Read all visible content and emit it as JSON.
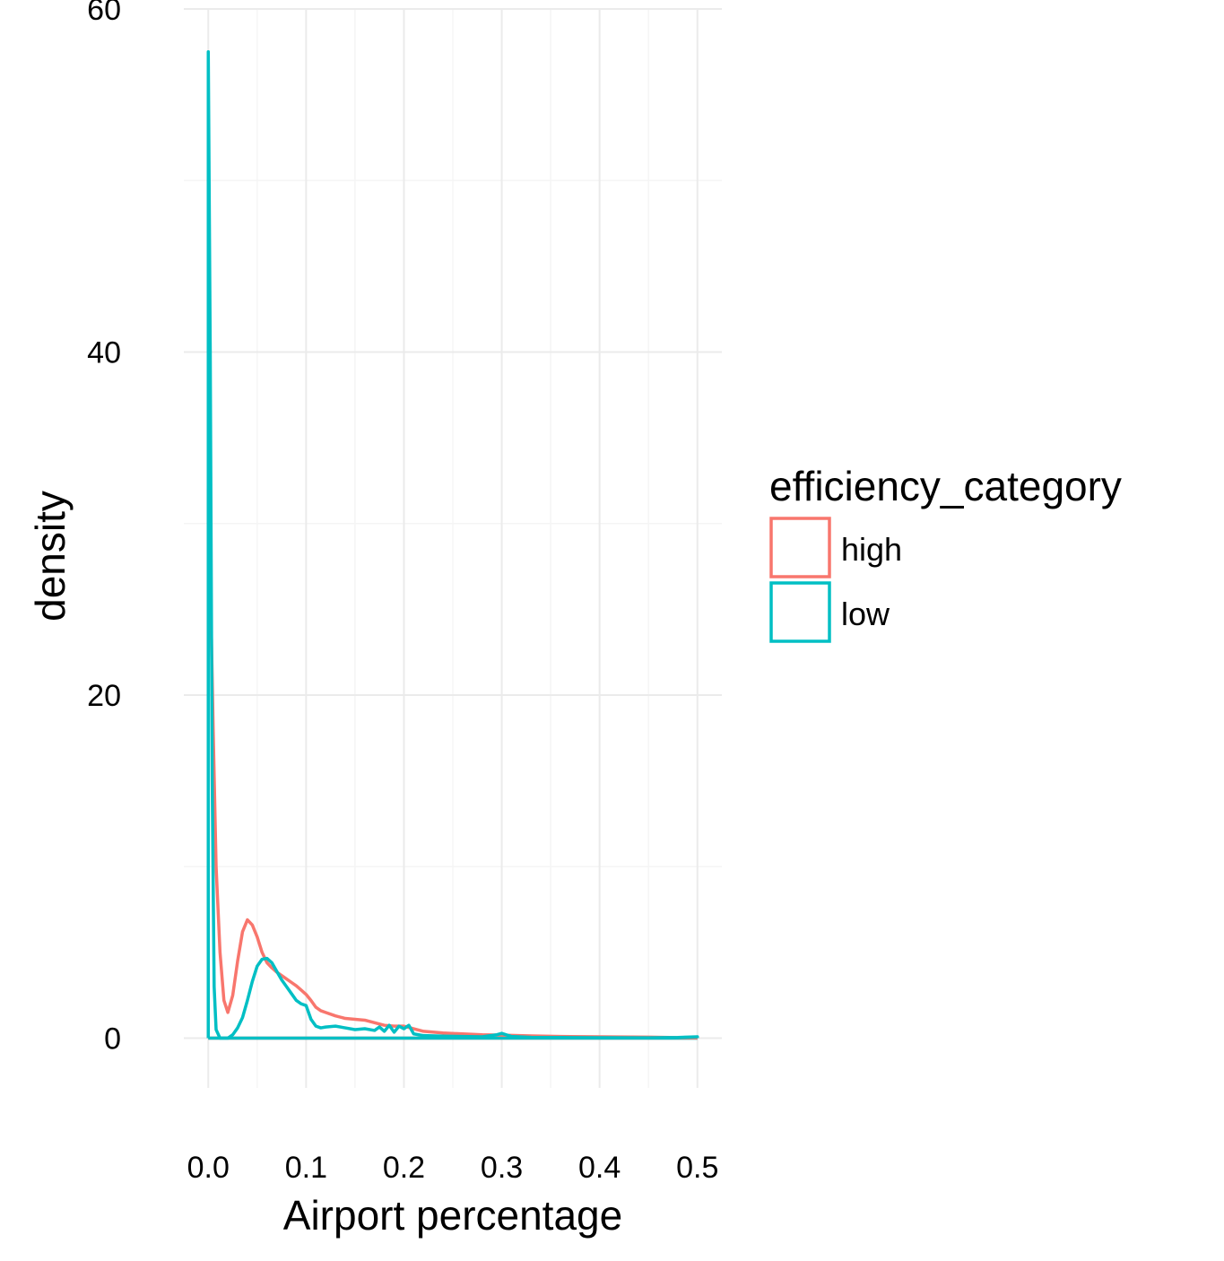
{
  "chart_data": {
    "type": "line",
    "subtype": "density",
    "xlabel": "Airport percentage",
    "ylabel": "density",
    "xlim": [
      -0.025,
      0.525
    ],
    "ylim": [
      -2.9,
      60
    ],
    "x_ticks": [
      0.0,
      0.1,
      0.2,
      0.3,
      0.4,
      0.5
    ],
    "x_tick_labels": [
      "0.0",
      "0.1",
      "0.2",
      "0.3",
      "0.4",
      "0.5"
    ],
    "y_ticks": [
      0,
      20,
      40,
      60
    ],
    "y_tick_labels": [
      "0",
      "20",
      "40",
      "60"
    ],
    "x_minor_ticks": [
      0.05,
      0.15,
      0.25,
      0.35,
      0.45
    ],
    "y_minor_ticks": [
      10,
      30,
      50
    ],
    "grid": true,
    "legend": {
      "title": "efficiency_category",
      "position": "right",
      "entries": [
        "high",
        "low"
      ]
    },
    "series": [
      {
        "name": "high",
        "color": "#F8766D",
        "points": [
          [
            0.0,
            0.0
          ],
          [
            0.0,
            32.0
          ],
          [
            0.002,
            27.0
          ],
          [
            0.005,
            18.0
          ],
          [
            0.008,
            10.0
          ],
          [
            0.012,
            5.0
          ],
          [
            0.016,
            2.2
          ],
          [
            0.02,
            1.5
          ],
          [
            0.025,
            2.5
          ],
          [
            0.03,
            4.5
          ],
          [
            0.035,
            6.2
          ],
          [
            0.04,
            6.9
          ],
          [
            0.045,
            6.6
          ],
          [
            0.05,
            5.9
          ],
          [
            0.055,
            5.0
          ],
          [
            0.06,
            4.4
          ],
          [
            0.065,
            4.1
          ],
          [
            0.07,
            3.85
          ],
          [
            0.075,
            3.65
          ],
          [
            0.08,
            3.45
          ],
          [
            0.085,
            3.25
          ],
          [
            0.09,
            3.05
          ],
          [
            0.095,
            2.8
          ],
          [
            0.1,
            2.55
          ],
          [
            0.105,
            2.2
          ],
          [
            0.11,
            1.8
          ],
          [
            0.115,
            1.6
          ],
          [
            0.12,
            1.5
          ],
          [
            0.13,
            1.3
          ],
          [
            0.14,
            1.15
          ],
          [
            0.15,
            1.1
          ],
          [
            0.16,
            1.05
          ],
          [
            0.17,
            0.9
          ],
          [
            0.18,
            0.75
          ],
          [
            0.19,
            0.7
          ],
          [
            0.2,
            0.7
          ],
          [
            0.21,
            0.55
          ],
          [
            0.22,
            0.4
          ],
          [
            0.24,
            0.3
          ],
          [
            0.26,
            0.25
          ],
          [
            0.28,
            0.2
          ],
          [
            0.3,
            0.18
          ],
          [
            0.33,
            0.13
          ],
          [
            0.36,
            0.1
          ],
          [
            0.4,
            0.08
          ],
          [
            0.45,
            0.06
          ],
          [
            0.5,
            0.02
          ],
          [
            0.5,
            0.0
          ]
        ]
      },
      {
        "name": "low",
        "color": "#00BFC4",
        "points": [
          [
            0.0,
            0.0
          ],
          [
            0.0,
            57.5
          ],
          [
            0.002,
            40.0
          ],
          [
            0.004,
            15.0
          ],
          [
            0.006,
            3.0
          ],
          [
            0.008,
            0.5
          ],
          [
            0.012,
            0.0
          ],
          [
            0.02,
            0.0
          ],
          [
            0.025,
            0.2
          ],
          [
            0.03,
            0.6
          ],
          [
            0.035,
            1.2
          ],
          [
            0.04,
            2.2
          ],
          [
            0.045,
            3.3
          ],
          [
            0.05,
            4.2
          ],
          [
            0.055,
            4.6
          ],
          [
            0.06,
            4.65
          ],
          [
            0.065,
            4.4
          ],
          [
            0.07,
            3.9
          ],
          [
            0.075,
            3.4
          ],
          [
            0.08,
            3.0
          ],
          [
            0.085,
            2.6
          ],
          [
            0.09,
            2.2
          ],
          [
            0.095,
            2.0
          ],
          [
            0.1,
            1.9
          ],
          [
            0.105,
            1.1
          ],
          [
            0.11,
            0.7
          ],
          [
            0.115,
            0.6
          ],
          [
            0.12,
            0.65
          ],
          [
            0.13,
            0.7
          ],
          [
            0.14,
            0.6
          ],
          [
            0.15,
            0.5
          ],
          [
            0.16,
            0.55
          ],
          [
            0.17,
            0.45
          ],
          [
            0.175,
            0.65
          ],
          [
            0.18,
            0.4
          ],
          [
            0.185,
            0.75
          ],
          [
            0.19,
            0.35
          ],
          [
            0.195,
            0.7
          ],
          [
            0.2,
            0.55
          ],
          [
            0.205,
            0.75
          ],
          [
            0.21,
            0.25
          ],
          [
            0.22,
            0.15
          ],
          [
            0.24,
            0.12
          ],
          [
            0.26,
            0.1
          ],
          [
            0.28,
            0.08
          ],
          [
            0.295,
            0.2
          ],
          [
            0.3,
            0.28
          ],
          [
            0.31,
            0.1
          ],
          [
            0.33,
            0.05
          ],
          [
            0.36,
            0.04
          ],
          [
            0.4,
            0.03
          ],
          [
            0.45,
            0.02
          ],
          [
            0.48,
            0.04
          ],
          [
            0.5,
            0.08
          ],
          [
            0.5,
            0.0
          ]
        ]
      }
    ]
  }
}
